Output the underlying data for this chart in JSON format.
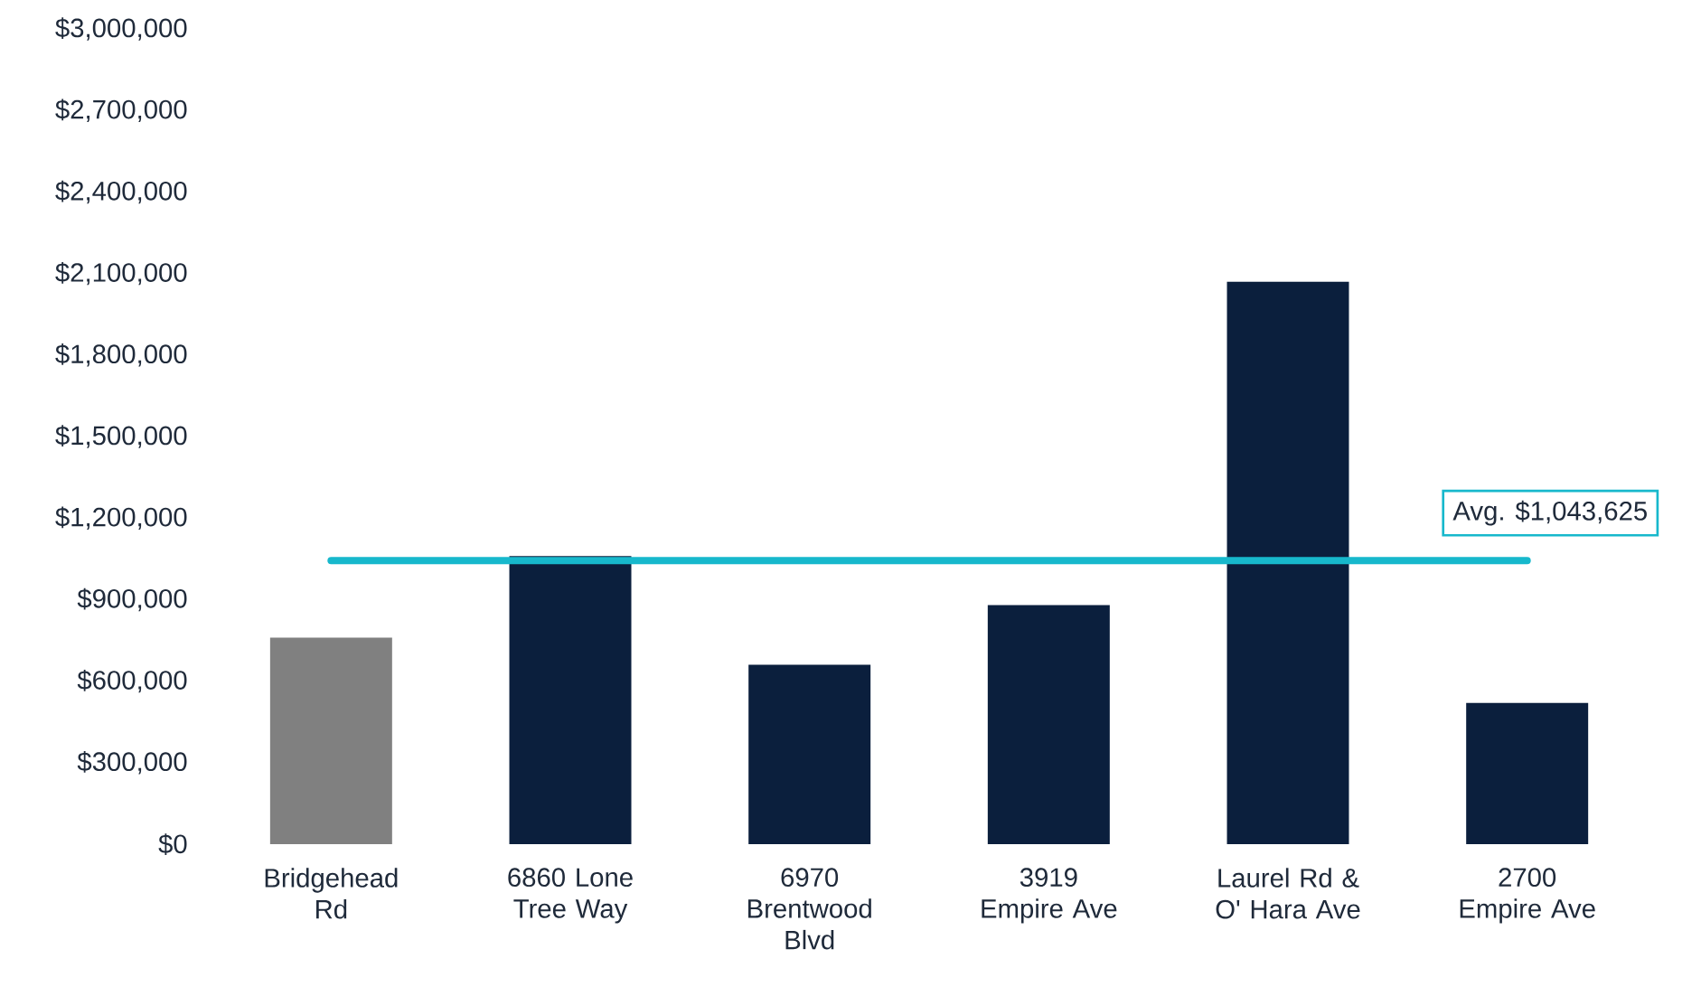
{
  "chart_data": {
    "type": "bar",
    "categories": [
      "Bridgehead Rd",
      "6860 Lone Tree Way",
      "6970 Brentwood Blvd",
      "3919 Empire Ave",
      "Laurel Rd & O' Hara Ave",
      "2700 Empire Ave"
    ],
    "values": [
      760000,
      1060000,
      660000,
      880000,
      2070000,
      520000
    ],
    "colors": [
      "#808080",
      "#0b1f3d",
      "#0b1f3d",
      "#0b1f3d",
      "#0b1f3d",
      "#0b1f3d"
    ],
    "ylim": [
      0,
      3000000
    ],
    "yticks": [
      {
        "value": 0,
        "label": "$0"
      },
      {
        "value": 300000,
        "label": "$300,000"
      },
      {
        "value": 600000,
        "label": "$600,000"
      },
      {
        "value": 900000,
        "label": "$900,000"
      },
      {
        "value": 1200000,
        "label": "$1,200,000"
      },
      {
        "value": 1500000,
        "label": "$1,500,000"
      },
      {
        "value": 1800000,
        "label": "$1,800,000"
      },
      {
        "value": 2100000,
        "label": "$2,100,000"
      },
      {
        "value": 2400000,
        "label": "$2,400,000"
      },
      {
        "value": 2700000,
        "label": "$2,700,000"
      },
      {
        "value": 3000000,
        "label": "$3,000,000"
      }
    ],
    "ref_lines": [
      {
        "axis": "y",
        "value": 1043625,
        "label": "Avg. $1,043,625",
        "color": "#17b8cc"
      }
    ]
  }
}
